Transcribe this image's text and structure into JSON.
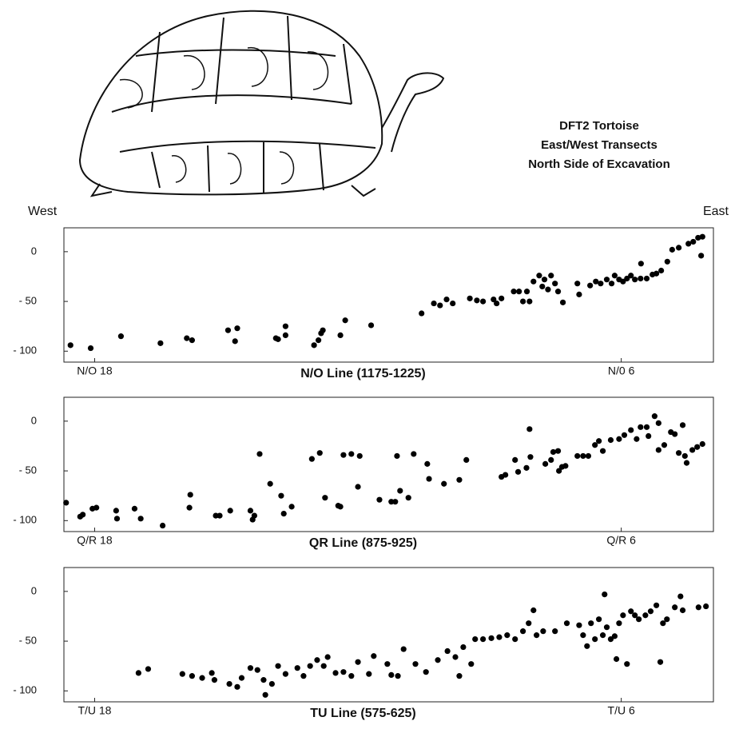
{
  "header": {
    "title": [
      "DFT2 Tortoise",
      "East/West Transects",
      "North Side of Excavation"
    ],
    "west": "West",
    "east": "East"
  },
  "chart_data": [
    {
      "type": "scatter",
      "xlabel": "N/O Line (1175-1225)",
      "color": "#000000",
      "xlim": [
        18.7,
        3.9
      ],
      "xticks": [
        {
          "value": 18,
          "label": "N/O 18"
        },
        {
          "value": 6,
          "label": "N/0 6"
        }
      ],
      "ylim": [
        -111,
        24
      ],
      "yticks": [
        0,
        {
          "value": -50,
          "label": "- 50"
        },
        {
          "value": -100,
          "label": "- 100"
        }
      ],
      "x": [
        18.55,
        18.09,
        17.4,
        16.5,
        15.9,
        15.78,
        14.96,
        14.8,
        14.75,
        13.87,
        13.82,
        13.65,
        13.65,
        13.0,
        12.9,
        12.84,
        12.8,
        12.4,
        12.29,
        11.7,
        10.55,
        10.27,
        10.13,
        9.98,
        9.84,
        9.45,
        9.29,
        9.15,
        8.91,
        8.84,
        8.73,
        8.45,
        8.33,
        8.24,
        8.15,
        8.09,
        8.0,
        7.87,
        7.8,
        7.75,
        7.67,
        7.6,
        7.51,
        7.44,
        7.33,
        7.0,
        6.96,
        6.71,
        6.58,
        6.47,
        6.33,
        6.22,
        6.15,
        6.05,
        5.96,
        5.87,
        5.78,
        5.69,
        5.56,
        5.55,
        5.42,
        5.29,
        5.2,
        5.09,
        4.95,
        4.84,
        4.69,
        4.47,
        4.36,
        4.25,
        4.15,
        4.18
      ],
      "values": [
        -94,
        -97,
        -85,
        -92,
        -87,
        -89,
        -79,
        -90,
        -77,
        -87,
        -88,
        -75,
        -84,
        -94,
        -89,
        -82,
        -79,
        -84,
        -69,
        -74,
        -62,
        -52,
        -54,
        -48,
        -52,
        -47,
        -49,
        -50,
        -48,
        -52,
        -47,
        -40,
        -40,
        -50,
        -40,
        -50,
        -30,
        -24,
        -35,
        -28,
        -38,
        -24,
        -32,
        -40,
        -51,
        -32,
        -43,
        -34,
        -30,
        -32,
        -28,
        -32,
        -24,
        -28,
        -30,
        -27,
        -24,
        -28,
        -27,
        -12,
        -27,
        -23,
        -22,
        -19,
        -10,
        2,
        4,
        8,
        10,
        14,
        15,
        -4
      ]
    },
    {
      "type": "scatter",
      "xlabel": "QR Line (875-925)",
      "color": "#000000",
      "xlim": [
        18.7,
        3.9
      ],
      "xticks": [
        {
          "value": 18,
          "label": "Q/R 18"
        },
        {
          "value": 6,
          "label": "Q/R 6"
        }
      ],
      "ylim": [
        -111,
        24
      ],
      "yticks": [
        0,
        {
          "value": -50,
          "label": "- 50"
        },
        {
          "value": -100,
          "label": "- 100"
        }
      ],
      "x": [
        18.65,
        18.33,
        18.27,
        18.05,
        17.96,
        17.51,
        17.49,
        17.09,
        16.95,
        16.45,
        15.84,
        15.82,
        15.24,
        15.15,
        14.91,
        14.45,
        14.4,
        14.36,
        14.24,
        14.0,
        13.75,
        13.69,
        13.51,
        13.05,
        12.87,
        12.75,
        12.45,
        12.4,
        12.33,
        12.15,
        12.0,
        11.96,
        11.51,
        11.24,
        11.15,
        11.11,
        11.04,
        10.85,
        10.73,
        10.42,
        10.38,
        10.04,
        9.69,
        9.53,
        8.73,
        8.64,
        8.42,
        8.35,
        8.16,
        8.09,
        8.07,
        7.73,
        7.6,
        7.55,
        7.44,
        7.42,
        7.35,
        7.27,
        7.0,
        6.87,
        6.75,
        6.6,
        6.51,
        6.42,
        6.24,
        6.05,
        5.93,
        5.78,
        5.65,
        5.56,
        5.42,
        5.38,
        5.24,
        5.15,
        5.15,
        5.02,
        4.87,
        4.78,
        4.69,
        4.6,
        4.55,
        4.51,
        4.38,
        4.27,
        4.15
      ],
      "values": [
        -82,
        -96,
        -94,
        -88,
        -87,
        -90,
        -98,
        -88,
        -98,
        -105,
        -87,
        -74,
        -95,
        -95,
        -90,
        -90,
        -99,
        -95,
        -33,
        -63,
        -75,
        -93,
        -86,
        -38,
        -32,
        -77,
        -85,
        -86,
        -34,
        -33,
        -66,
        -35,
        -79,
        -81,
        -81,
        -35,
        -70,
        -77,
        -33,
        -43,
        -58,
        -63,
        -59,
        -39,
        -56,
        -54,
        -39,
        -51,
        -47,
        -8,
        -36,
        -43,
        -39,
        -31,
        -30,
        -50,
        -46,
        -45,
        -35,
        -35,
        -35,
        -24,
        -20,
        -30,
        -19,
        -18,
        -14,
        -9,
        -18,
        -6,
        -6,
        -15,
        5,
        -2,
        -29,
        -24,
        -11,
        -13,
        -32,
        -4,
        -35,
        -42,
        -29,
        -26,
        -23
      ]
    },
    {
      "type": "scatter",
      "xlabel": "TU Line (575-625)",
      "color": "#000000",
      "xlim": [
        18.7,
        3.9
      ],
      "xticks": [
        {
          "value": 18,
          "label": "T/U 18"
        },
        {
          "value": 6,
          "label": "T/U 6"
        }
      ],
      "ylim": [
        -111,
        24
      ],
      "yticks": [
        0,
        {
          "value": -50,
          "label": "- 50"
        },
        {
          "value": -100,
          "label": "- 100"
        }
      ],
      "x": [
        17.0,
        16.78,
        16.0,
        15.78,
        15.55,
        15.33,
        15.27,
        14.93,
        14.75,
        14.65,
        14.45,
        14.29,
        14.15,
        14.11,
        13.96,
        13.82,
        13.65,
        13.38,
        13.24,
        13.09,
        12.93,
        12.78,
        12.69,
        12.51,
        12.33,
        12.15,
        12.0,
        11.75,
        11.64,
        11.33,
        11.24,
        11.09,
        10.96,
        10.69,
        10.45,
        10.18,
        9.96,
        9.78,
        9.69,
        9.6,
        9.42,
        9.33,
        9.15,
        8.96,
        8.78,
        8.6,
        8.42,
        8.24,
        8.11,
        8.0,
        7.93,
        7.78,
        7.51,
        7.24,
        6.96,
        6.87,
        6.78,
        6.69,
        6.6,
        6.51,
        6.42,
        6.38,
        6.33,
        6.24,
        6.15,
        6.11,
        6.05,
        5.96,
        5.87,
        5.78,
        5.69,
        5.6,
        5.45,
        5.33,
        5.2,
        5.11,
        5.05,
        4.96,
        4.78,
        4.65,
        4.6,
        4.24,
        4.07
      ],
      "values": [
        -82,
        -78,
        -83,
        -85,
        -87,
        -82,
        -89,
        -93,
        -96,
        -87,
        -77,
        -79,
        -89,
        -104,
        -93,
        -75,
        -83,
        -77,
        -85,
        -75,
        -69,
        -75,
        -66,
        -82,
        -81,
        -85,
        -71,
        -83,
        -65,
        -73,
        -84,
        -85,
        -58,
        -73,
        -81,
        -69,
        -60,
        -66,
        -85,
        -56,
        -73,
        -48,
        -48,
        -47,
        -46,
        -44,
        -48,
        -40,
        -32,
        -19,
        -44,
        -40,
        -40,
        -32,
        -34,
        -44,
        -55,
        -32,
        -48,
        -28,
        -44,
        -3,
        -36,
        -48,
        -45,
        -68,
        -32,
        -24,
        -73,
        -20,
        -24,
        -28,
        -24,
        -20,
        -14,
        -71,
        -32,
        -28,
        -16,
        -5,
        -19,
        -16,
        -15
      ]
    }
  ]
}
